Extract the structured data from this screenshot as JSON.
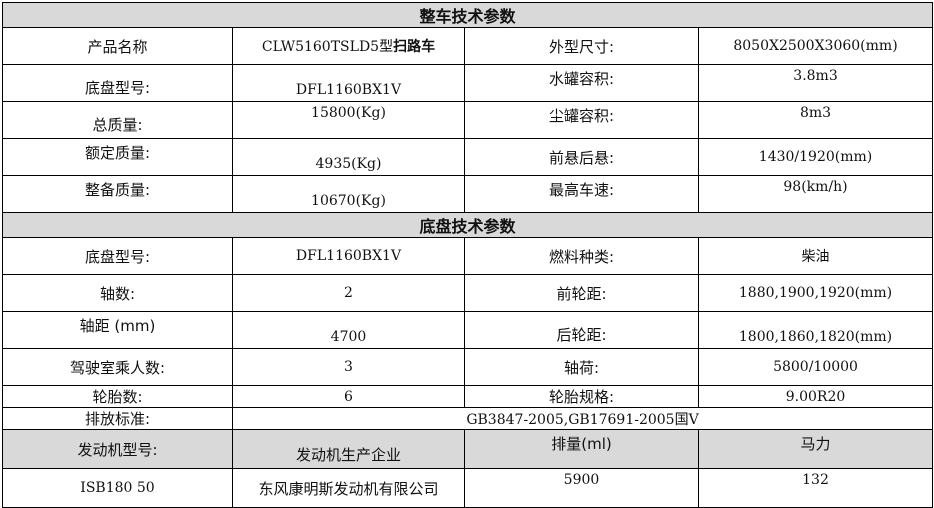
{
  "vehicle_section": {
    "title": "整车技术参数",
    "rows": [
      {
        "l1": "产品名称",
        "v1_model": "CLW5160TSLD5型",
        "v1_type": "扫路车",
        "l2": "外型尺寸:",
        "v2": "8050X2500X3060(mm)"
      },
      {
        "l1": "底盘型号:",
        "v1": "DFL1160BX1V",
        "l2": "水罐容积:",
        "v2": "3.8m3"
      },
      {
        "l1": "总质量:",
        "v1": "15800(Kg)",
        "l2": "尘罐容积:",
        "v2": "8m3"
      },
      {
        "l1": "额定质量:",
        "v1": "4935(Kg)",
        "l2": "前悬后悬:",
        "v2": "1430/1920(mm)"
      },
      {
        "l1": "整备质量:",
        "v1": "10670(Kg)",
        "l2": "最高车速:",
        "v2": "98(km/h)"
      }
    ]
  },
  "chassis_section": {
    "title": "底盘技术参数",
    "rows": [
      {
        "l1": "底盘型号:",
        "v1": "DFL1160BX1V",
        "l2": "燃料种类:",
        "v2": "柴油"
      },
      {
        "l1": "轴数:",
        "v1": "2",
        "l2": "前轮距:",
        "v2": "1880,1900,1920(mm)"
      },
      {
        "l1": "轴距 (mm)",
        "v1": "4700",
        "l2": "后轮距:",
        "v2": "1800,1860,1820(mm)"
      },
      {
        "l1": "驾驶室乘人数:",
        "v1": "3",
        "l2": "轴荷:",
        "v2": "5800/10000"
      },
      {
        "l1": "轮胎数:",
        "v1": "6",
        "l2": "轮胎规格:",
        "v2": "9.00R20"
      }
    ],
    "emission": {
      "label": "排放标准:",
      "value": "GB3847-2005,GB17691-2005国V"
    }
  },
  "engine": {
    "headers": [
      "发动机型号:",
      "发动机生产企业",
      "排量(ml)",
      "马力"
    ],
    "values": [
      "ISB180 50",
      "东风康明斯发动机有限公司",
      "5900",
      "132"
    ]
  }
}
